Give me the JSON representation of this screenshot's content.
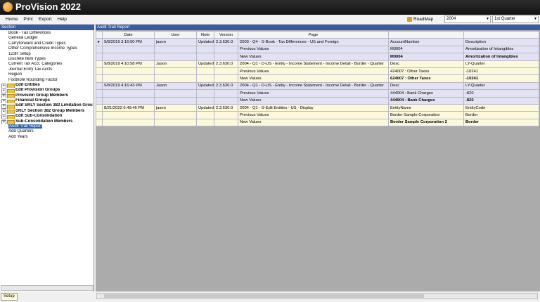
{
  "app_title": "ProVision 2022",
  "menu": [
    "Home",
    "Print",
    "Export",
    "Help"
  ],
  "toolbar": {
    "roadmap": "RoadMap",
    "year": "2004",
    "quarter": "1st Quarter"
  },
  "left_panel": {
    "title": "Section",
    "items": [
      {
        "label": "Book - Tax Differences"
      },
      {
        "label": "General Ledger"
      },
      {
        "label": "Carryforward and Credit Types"
      },
      {
        "label": "Other Comprehensive Income Types"
      },
      {
        "label": "123R Setup"
      },
      {
        "label": "Discrete Item Types"
      },
      {
        "label": "Current Tax Acct. Categories"
      },
      {
        "label": "Journal Entry Tax Accts"
      },
      {
        "label": "Region"
      },
      {
        "label": "Footnote Rounding Factor"
      },
      {
        "label": "Edit Entities",
        "folder": true
      },
      {
        "label": "Edit Provision Groups",
        "folder": true
      },
      {
        "label": "Provision Group Members",
        "folder": true
      },
      {
        "label": "Financial Groups",
        "folder": true
      },
      {
        "label": "Edit SRLY Section 382 Limitation Grou",
        "folder": true
      },
      {
        "label": "SRLY Section 382 Group Members",
        "folder": true
      },
      {
        "label": "Edit Sub-Consolidation",
        "folder": true
      },
      {
        "label": "Sub-Consolidation Members",
        "folder": true
      },
      {
        "label": "Audit Trail Report",
        "selected": true
      },
      {
        "label": "Add Quarters"
      },
      {
        "label": "Add Years"
      }
    ],
    "tab": "Setup"
  },
  "report": {
    "title": "Audit Trail Report",
    "columns": [
      "Date",
      "User",
      "Note",
      "Version",
      "Page"
    ],
    "groups": [
      {
        "date": "9/8/2019 3:16:50 PM",
        "user": "jason",
        "note": "Updated",
        "version": "2.3.630.0",
        "page": "2003 - Q4 - S-Book - Tax Differences - US and Foreign",
        "field": "AccountNumber",
        "field2": "Description",
        "previous": {
          "label": "Previous Values",
          "a": "M0004",
          "b": "Amortization of Intangibles"
        },
        "new": {
          "label": "New Values",
          "a": "M0004",
          "b": "Amortization of Intangibles"
        }
      },
      {
        "date": "9/8/2019 4:10:58 PM",
        "user": "Jason",
        "note": "Updated",
        "version": "2.3.630.0",
        "page": "2004 - Q1 - D-US - Entity - Income Statement - Income Detail - Border - Quarter",
        "field": "Desc",
        "field2": "LY-Quarter",
        "previous": {
          "label": "Previous Values",
          "a": "424007 : Other Taxes",
          "b": "-10241"
        },
        "new": {
          "label": "New Values",
          "a": "624007 : Other Taxes",
          "b": "-10241"
        }
      },
      {
        "date": "9/8/2019 4:16:43 PM",
        "user": "Jason",
        "note": "Updated",
        "version": "2.3.630.0",
        "page": "2004 - Q1 - D-US - Entity - Income Statement - Income Detail - Border - Quarter",
        "field": "Desc",
        "field2": "LY-Quarter",
        "previous": {
          "label": "Previous Values",
          "a": "444004 : Bank Charges",
          "b": "-820"
        },
        "new": {
          "label": "New Values",
          "a": "444004 : Bank Charges",
          "b": "-820"
        }
      },
      {
        "date": "8/21/2022 6:49:46 PM",
        "user": "jason",
        "note": "Updated",
        "version": "2.3.630.0",
        "page": "2004 - Q1 - S-Edit Entities - US - Display",
        "field": "EntityName",
        "field2": "EntityCode",
        "previous": {
          "label": "Previous Values",
          "a": "Border Sample Corporation",
          "b": "Border"
        },
        "new": {
          "label": "New Values",
          "a": "Border Sample Corporation 2",
          "b": "Border"
        }
      }
    ]
  }
}
